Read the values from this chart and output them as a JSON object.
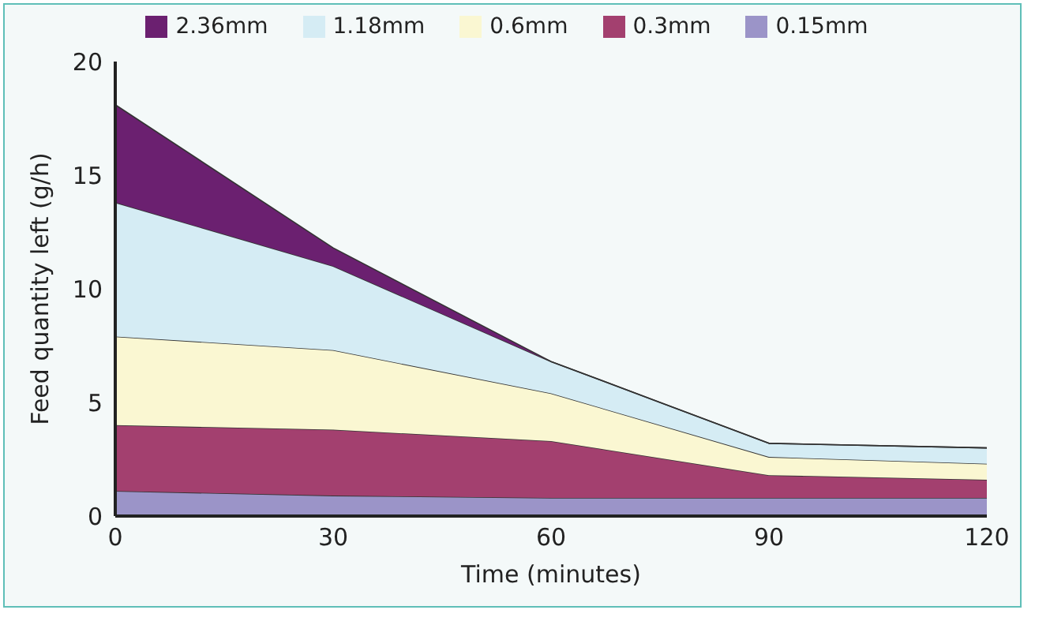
{
  "chart_data": {
    "type": "area",
    "stacked": true,
    "xlabel": "Time (minutes)",
    "ylabel": "Feed quantity left (g/h)",
    "x": [
      0,
      30,
      60,
      90,
      120
    ],
    "xlim": [
      0,
      120
    ],
    "xticks": [
      0,
      30,
      60,
      90,
      120
    ],
    "ylim": [
      0,
      20
    ],
    "yticks": [
      0,
      5,
      10,
      15,
      20
    ],
    "grid": false,
    "legend": "top",
    "series": [
      {
        "name": "0.15mm",
        "color": "#9b94c8",
        "values": [
          1.1,
          0.9,
          0.8,
          0.8,
          0.8
        ]
      },
      {
        "name": "0.3mm",
        "color": "#a3406f",
        "values": [
          2.9,
          2.9,
          2.5,
          1.0,
          0.8
        ]
      },
      {
        "name": "0.6mm",
        "color": "#faf7d2",
        "values": [
          3.9,
          3.5,
          2.1,
          0.8,
          0.7
        ]
      },
      {
        "name": "1.18mm",
        "color": "#d5ecf4",
        "values": [
          5.9,
          3.7,
          1.4,
          0.6,
          0.7
        ]
      },
      {
        "name": "2.36mm",
        "color": "#6b2070",
        "values": [
          4.3,
          0.8,
          0,
          0,
          0
        ]
      }
    ]
  }
}
